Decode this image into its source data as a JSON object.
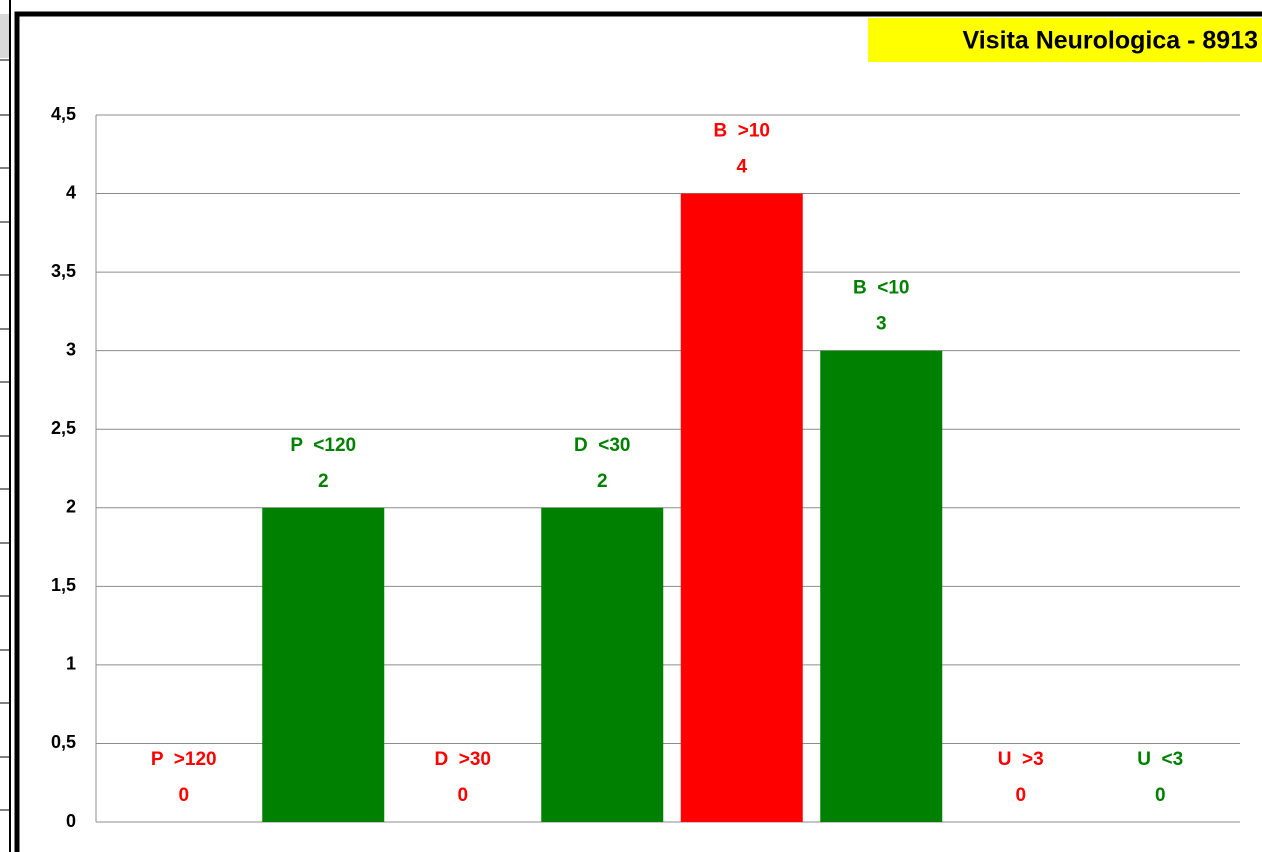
{
  "chart_data": {
    "type": "bar",
    "title": "Visita Neurologica - 8913",
    "categories": [
      "P  >120",
      "P  <120",
      "D  >30",
      "D  <30",
      "B  >10",
      "B  <10",
      "U  >3",
      "U  <3"
    ],
    "values": [
      0,
      2,
      0,
      2,
      4,
      3,
      0,
      0
    ],
    "colors": [
      "#ff0000",
      "#008000",
      "#ff0000",
      "#008000",
      "#ff0000",
      "#008000",
      "#ff0000",
      "#008000"
    ],
    "ylim": [
      0,
      4.5
    ],
    "yticks": [
      0,
      {
        "value": 0.5,
        "label": "0,5"
      },
      1,
      {
        "value": 1.5,
        "label": "1,5"
      },
      2,
      {
        "value": 2.5,
        "label": "2,5"
      },
      3,
      {
        "value": 3.5,
        "label": "3,5"
      },
      4,
      {
        "value": 4.5,
        "label": "4,5"
      }
    ],
    "grid": true
  }
}
